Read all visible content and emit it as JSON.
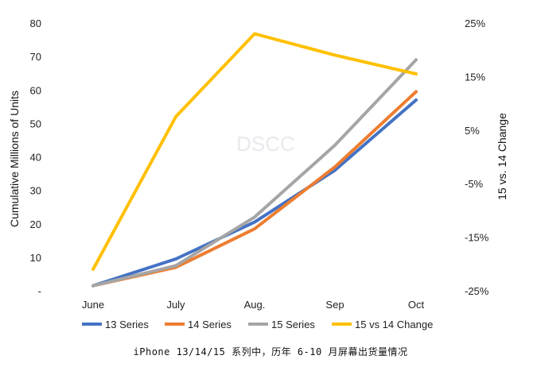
{
  "chart_data": {
    "type": "line",
    "categories": [
      "June",
      "July",
      "Aug.",
      "Sep",
      "Oct"
    ],
    "ylabel_left": "Cumulative Millions of Units",
    "ylabel_right": "15 vs. 14 Change",
    "ylim_left": [
      0,
      80
    ],
    "ylim_right": [
      -25,
      25
    ],
    "left_ticks": [
      "-",
      "10",
      "20",
      "30",
      "40",
      "50",
      "60",
      "70",
      "80"
    ],
    "right_ticks": [
      "-25%",
      "-15%",
      "-5%",
      "5%",
      "15%",
      "25%"
    ],
    "grid": false,
    "legend_position": "bottom",
    "watermark": "DSCC",
    "series": [
      {
        "name": "13 Series",
        "axis": "left",
        "color": "#4472C4",
        "values": [
          1.5,
          9.5,
          20.5,
          36,
          57
        ]
      },
      {
        "name": "14 Series",
        "axis": "left",
        "color": "#ED7D31",
        "values": [
          1.5,
          7,
          18.5,
          37,
          59.5
        ]
      },
      {
        "name": "15 Series",
        "axis": "left",
        "color": "#A5A5A5",
        "values": [
          1.5,
          7.5,
          22,
          43.5,
          69
        ]
      },
      {
        "name": "15 vs 14 Change",
        "axis": "right",
        "color": "#FFC000",
        "values": [
          -21,
          7.5,
          23,
          19,
          15.5
        ]
      }
    ]
  },
  "caption": "iPhone 13/14/15 系列中，历年 6-10 月屏幕出货量情况"
}
